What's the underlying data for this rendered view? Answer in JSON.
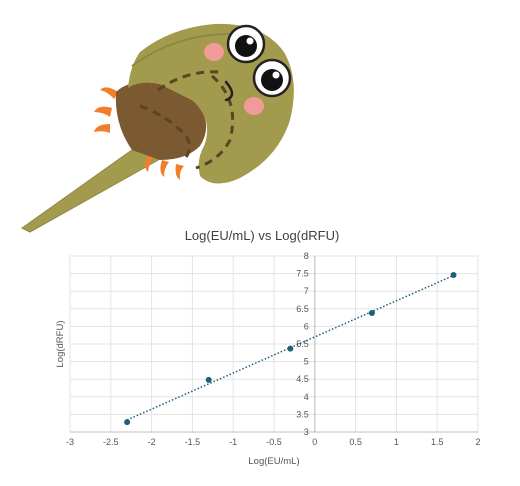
{
  "mascot": {
    "icon": "horseshoe-crab-mascot-icon",
    "colors": {
      "shell": "#a29a4c",
      "shell_dark": "#8f8843",
      "abdomen": "#7b5a32",
      "legs": "#f07f2b",
      "cheek": "#f29a9a",
      "outline": "#5a4421"
    }
  },
  "chart_data": {
    "type": "scatter",
    "title": "Log(EU/mL) vs Log(dRFU)",
    "xlabel": "Log(EU/mL)",
    "ylabel": "Log(dRFU)",
    "xlim": [
      -3,
      2
    ],
    "ylim": [
      3,
      8
    ],
    "x_ticks": [
      -3,
      -2.5,
      -2,
      -1.5,
      -1,
      -0.5,
      0,
      0.5,
      1,
      1.5,
      2
    ],
    "x_tick_labels": [
      "-3",
      "-2.5",
      "-2",
      "-1.5",
      "-1",
      "-0.5",
      "0",
      "0.5",
      "1",
      "1.5",
      "2"
    ],
    "y_ticks": [
      3,
      3.5,
      4,
      4.5,
      5,
      5.5,
      6,
      6.5,
      7,
      7.5,
      8
    ],
    "y_tick_labels": [
      "3",
      "3.5",
      "4",
      "4.5",
      "5",
      "5.5",
      "6",
      "6.5",
      "7",
      "7.5",
      "8"
    ],
    "grid": true,
    "legend": "none",
    "series": [
      {
        "x": [
          -2.3,
          -1.3,
          -0.3,
          0.7,
          1.7
        ],
        "y": [
          3.28,
          4.48,
          5.37,
          6.38,
          7.46
        ],
        "color": "#1f5f7a"
      }
    ],
    "trendline": {
      "type": "linear",
      "style": "dotted",
      "color": "#1f5f7a"
    }
  }
}
